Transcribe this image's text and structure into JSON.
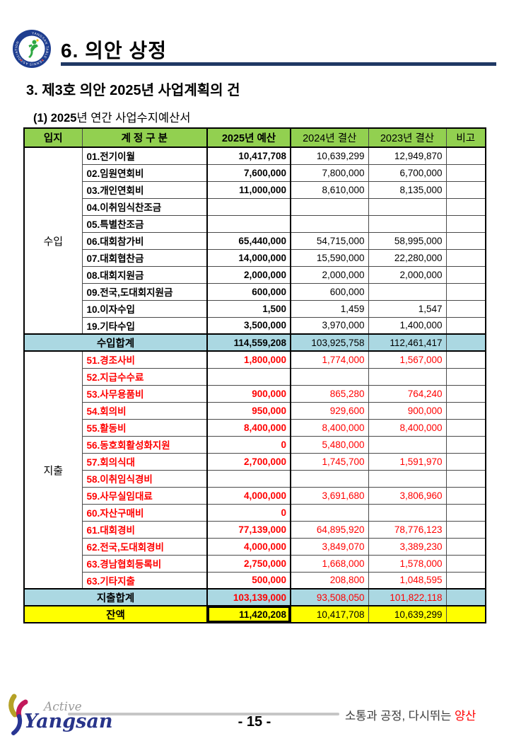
{
  "header": {
    "title": "6. 의안 상정",
    "logo_ring_text": "YANGSAN TABLE TENNIS ASSOCIATION"
  },
  "headings": {
    "agenda": "3. 제3호 의안 2025년 사업계획의 건",
    "sub_prefix": "(1) 2025",
    "sub_rest": "년 연간 사업수지예산서"
  },
  "table": {
    "columns": [
      "입지",
      "계 정 구 분",
      "2025년 예산",
      "2024년 결산",
      "2023년 결산",
      "비고"
    ],
    "income_group_label": "수입",
    "expense_group_label": "지출",
    "income_rows": [
      {
        "name": "01.전기이월",
        "y2025": "10,417,708",
        "y2024": "10,639,299",
        "y2023": "12,949,870"
      },
      {
        "name": "02.임원연회비",
        "y2025": "7,600,000",
        "y2024": "7,800,000",
        "y2023": "6,700,000"
      },
      {
        "name": "03.개인연회비",
        "y2025": "11,000,000",
        "y2024": "8,610,000",
        "y2023": "8,135,000"
      },
      {
        "name": "04.이취임식찬조금",
        "y2025": "",
        "y2024": "",
        "y2023": ""
      },
      {
        "name": "05.특별찬조금",
        "y2025": "",
        "y2024": "",
        "y2023": ""
      },
      {
        "name": "06.대회참가비",
        "y2025": "65,440,000",
        "y2024": "54,715,000",
        "y2023": "58,995,000"
      },
      {
        "name": "07.대회협찬금",
        "y2025": "14,000,000",
        "y2024": "15,590,000",
        "y2023": "22,280,000"
      },
      {
        "name": "08.대회지원금",
        "y2025": "2,000,000",
        "y2024": "2,000,000",
        "y2023": "2,000,000"
      },
      {
        "name": "09.전국,도대회지원금",
        "y2025": "600,000",
        "y2024": "600,000",
        "y2023": ""
      },
      {
        "name": "10.이자수입",
        "y2025": "1,500",
        "y2024": "1,459",
        "y2023": "1,547"
      },
      {
        "name": "19.기타수입",
        "y2025": "3,500,000",
        "y2024": "3,970,000",
        "y2023": "1,400,000"
      }
    ],
    "income_total": {
      "label": "수입합계",
      "y2025": "114,559,208",
      "y2024": "103,925,758",
      "y2023": "112,461,417"
    },
    "expense_rows": [
      {
        "name": "51.경조사비",
        "y2025": "1,800,000",
        "y2024": "1,774,000",
        "y2023": "1,567,000"
      },
      {
        "name": "52.지급수수료",
        "y2025": "",
        "y2024": "",
        "y2023": ""
      },
      {
        "name": "53.사무용품비",
        "y2025": "900,000",
        "y2024": "865,280",
        "y2023": "764,240"
      },
      {
        "name": "54.회의비",
        "y2025": "950,000",
        "y2024": "929,600",
        "y2023": "900,000"
      },
      {
        "name": "55.활동비",
        "y2025": "8,400,000",
        "y2024": "8,400,000",
        "y2023": "8,400,000"
      },
      {
        "name": "56.동호회활성화지원",
        "y2025": "0",
        "y2024": "5,480,000",
        "y2023": ""
      },
      {
        "name": "57.회의식대",
        "y2025": "2,700,000",
        "y2024": "1,745,700",
        "y2023": "1,591,970"
      },
      {
        "name": "58.이취임식경비",
        "y2025": "",
        "y2024": "",
        "y2023": ""
      },
      {
        "name": "59.사무실임대료",
        "y2025": "4,000,000",
        "y2024": "3,691,680",
        "y2023": "3,806,960"
      },
      {
        "name": "60.자산구매비",
        "y2025": "0",
        "y2024": "",
        "y2023": ""
      },
      {
        "name": "61.대회경비",
        "y2025": "77,139,000",
        "y2024": "64,895,920",
        "y2023": "78,776,123"
      },
      {
        "name": "62.전국,도대회경비",
        "y2025": "4,000,000",
        "y2024": "3,849,070",
        "y2023": "3,389,230"
      },
      {
        "name": "63.경남협회등록비",
        "y2025": "2,750,000",
        "y2024": "1,668,000",
        "y2023": "1,578,000"
      },
      {
        "name": "63.기타지출",
        "y2025": "500,000",
        "y2024": "208,800",
        "y2023": "1,048,595"
      }
    ],
    "expense_total": {
      "label": "지출합계",
      "y2025": "103,139,000",
      "y2024": "93,508,050",
      "y2023": "101,822,118"
    },
    "balance": {
      "label": "잔액",
      "y2025": "11,420,208",
      "y2024": "10,417,708",
      "y2023": "10,639,299"
    }
  },
  "footer": {
    "logo_active": "Active",
    "logo_yangsan": "Yangsan",
    "slogan_prefix": "소통과 공정, 다시뛰는 ",
    "slogan_highlight": "양산",
    "page_number": "- 15 -"
  },
  "colors": {
    "header_green": "#92D050",
    "total_blue": "#ABD8E2",
    "balance_yellow": "#FFFF00",
    "expense_red": "#FF0000",
    "underline_navy": "#1F3864",
    "footer_line_gray": "#C6C6C6"
  }
}
